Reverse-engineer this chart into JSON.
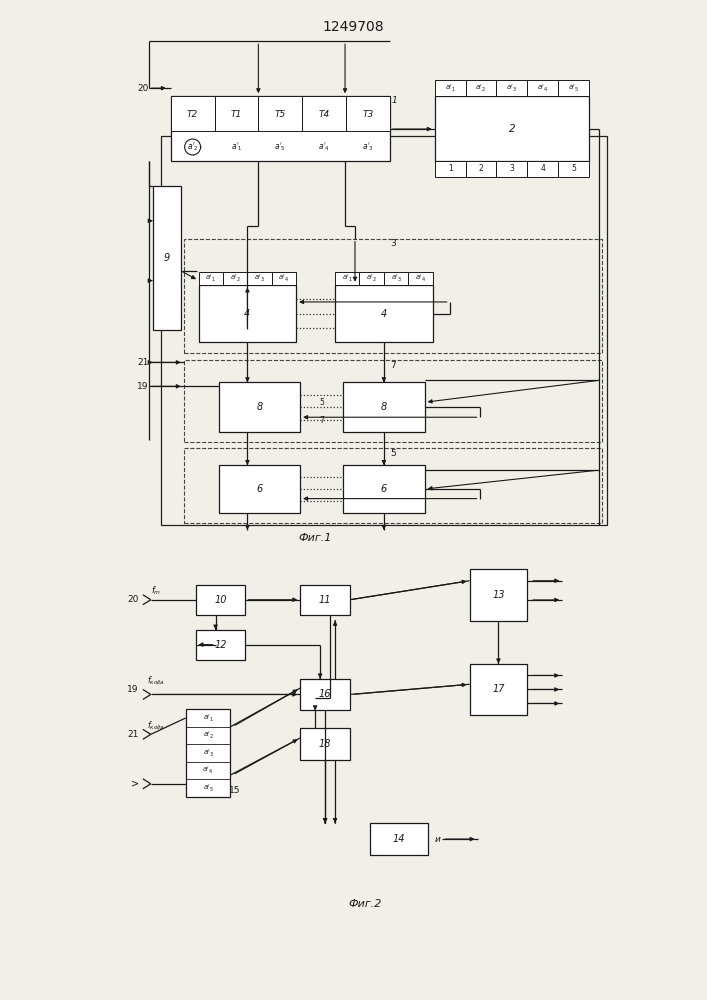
{
  "title": "1249708",
  "fig1_caption": "Фиг.1",
  "fig2_caption": "Фиг.2",
  "bg": "#f2efe8",
  "lc": "#1a1a1a"
}
